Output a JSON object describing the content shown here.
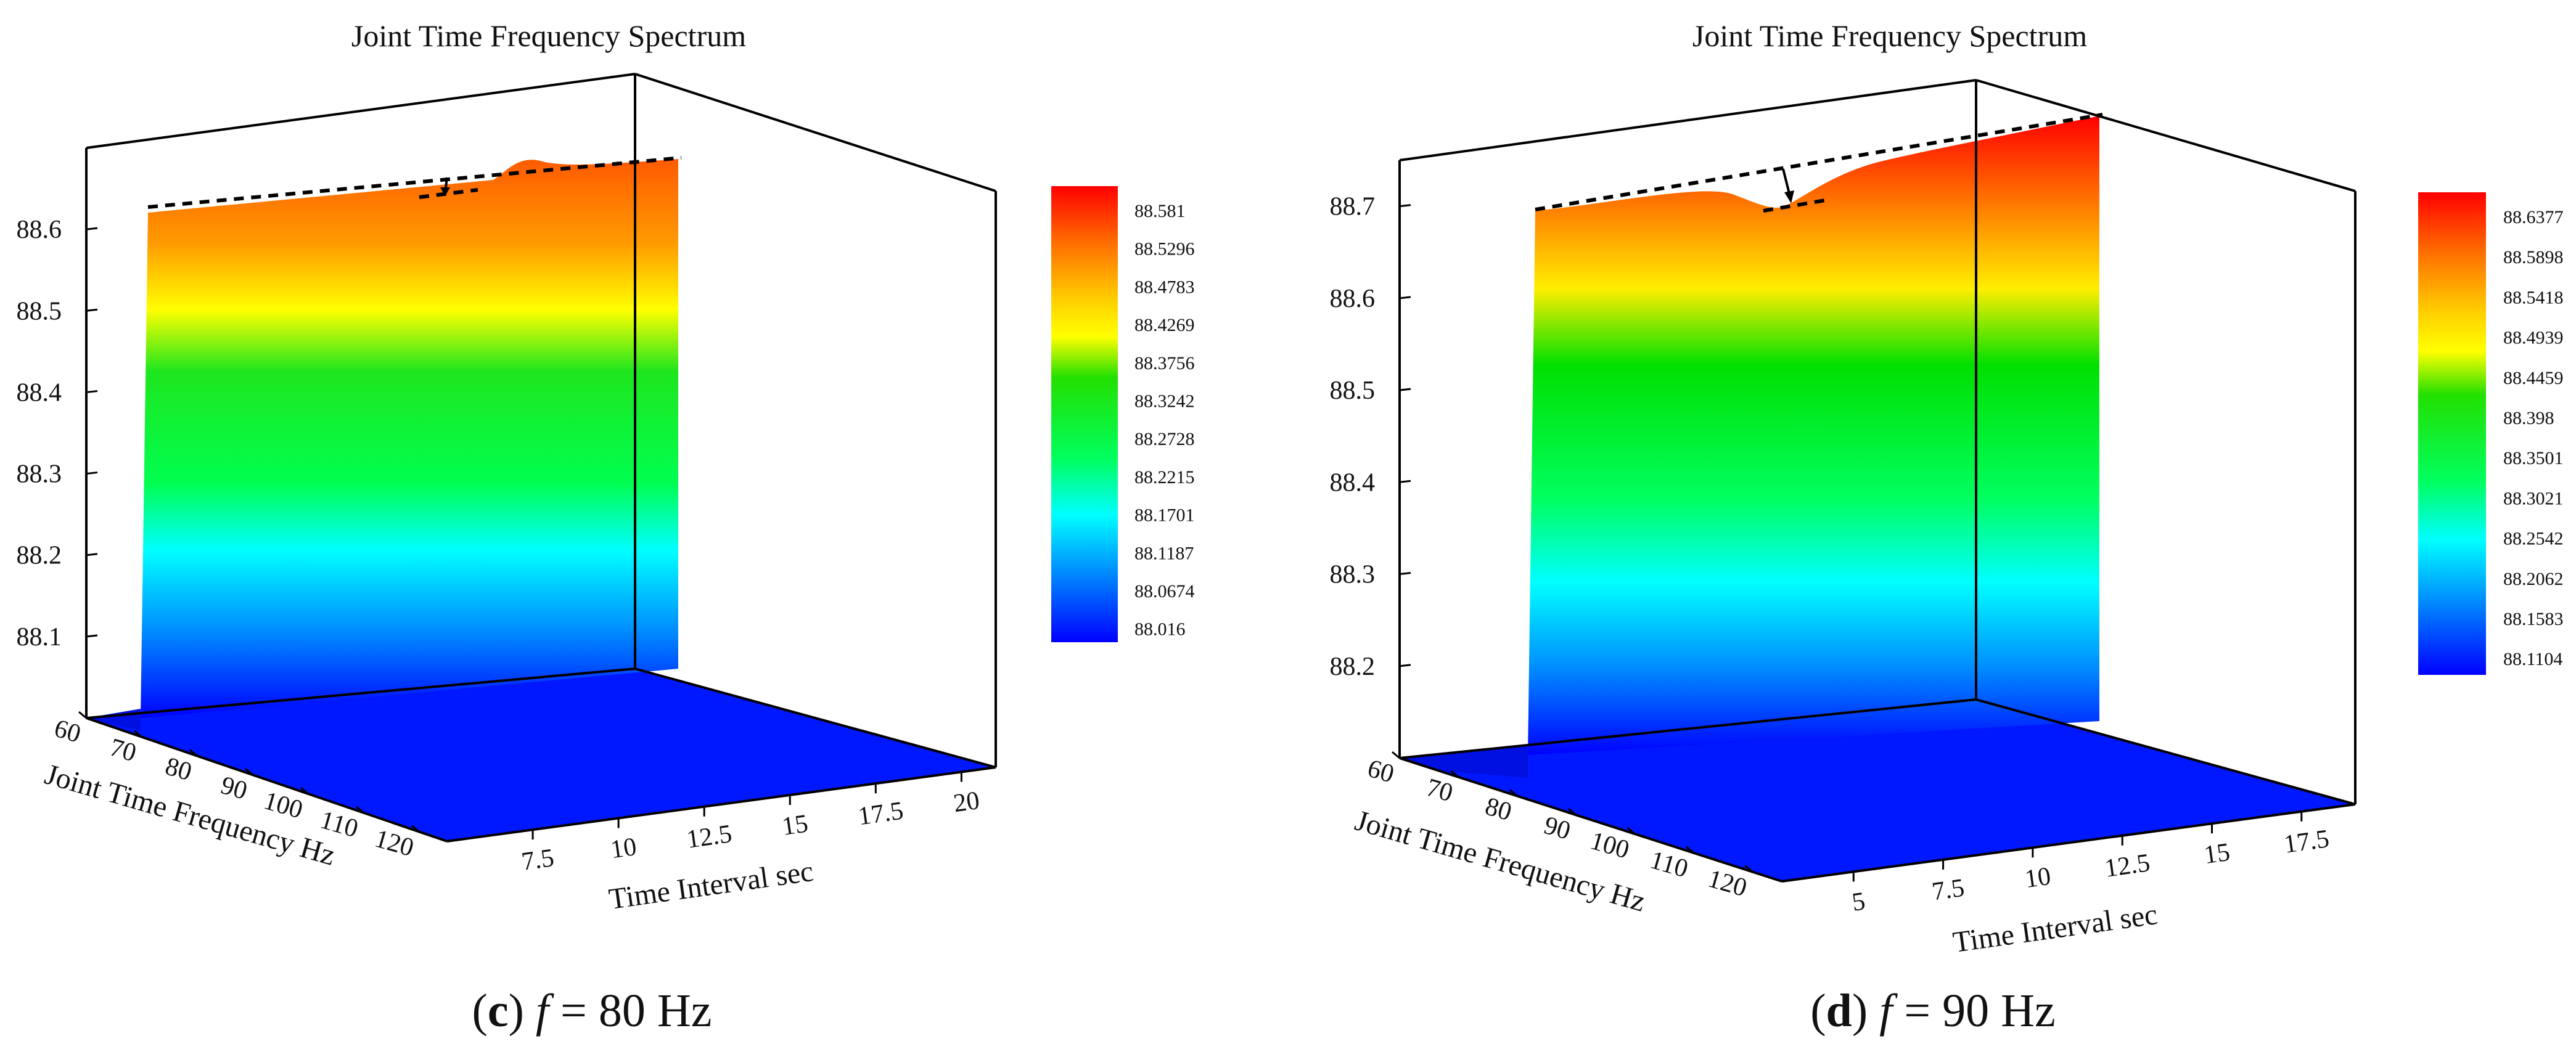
{
  "chart_data": [
    {
      "type": "surface",
      "title": "Joint Time Frequency Spectrum",
      "xlabel": "Time Interval  sec",
      "ylabel": "Joint Time Frequency  Hz",
      "zlabel": "",
      "x_ticks": [
        "7.5",
        "10",
        "12.5",
        "15",
        "17.5",
        "20"
      ],
      "y_ticks": [
        "60",
        "70",
        "80",
        "90",
        "100",
        "110",
        "120"
      ],
      "z_ticks": [
        "88.1",
        "88.2",
        "88.3",
        "88.4",
        "88.5",
        "88.6"
      ],
      "xlim": [
        5,
        21
      ],
      "ylim": [
        60,
        125
      ],
      "zlim": [
        88.0,
        88.7
      ],
      "colorbar": [
        "88.581",
        "88.5296",
        "88.4783",
        "88.4269",
        "88.3756",
        "88.3242",
        "88.2728",
        "88.2215",
        "88.1701",
        "88.1187",
        "88.0674",
        "88.016"
      ],
      "caption_letter": "c",
      "caption_var": "f",
      "caption_rest": " = 80 Hz"
    },
    {
      "type": "surface",
      "title": "Joint Time Frequency Spectrum",
      "xlabel": "Time Interval  sec",
      "ylabel": "Joint Time Frequency  Hz",
      "zlabel": "",
      "x_ticks": [
        "5",
        "7.5",
        "10",
        "12.5",
        "15",
        "17.5"
      ],
      "y_ticks": [
        "60",
        "70",
        "80",
        "90",
        "100",
        "110",
        "120"
      ],
      "z_ticks": [
        "88.2",
        "88.3",
        "88.4",
        "88.5",
        "88.6",
        "88.7"
      ],
      "xlim": [
        3,
        19
      ],
      "ylim": [
        60,
        125
      ],
      "zlim": [
        88.1,
        88.75
      ],
      "colorbar": [
        "88.6377",
        "88.5898",
        "88.5418",
        "88.4939",
        "88.4459",
        "88.398",
        "88.3501",
        "88.3021",
        "88.2542",
        "88.2062",
        "88.1583",
        "88.1104"
      ],
      "caption_letter": "d",
      "caption_var": "f",
      "caption_rest": " = 90 Hz"
    }
  ],
  "colors": {
    "spectrum": [
      "#ff0000",
      "#ff8c00",
      "#ffff00",
      "#00e000",
      "#00ffff",
      "#0040ff",
      "#0000ff"
    ],
    "floor": "#0018ff",
    "frame": "#000000"
  }
}
